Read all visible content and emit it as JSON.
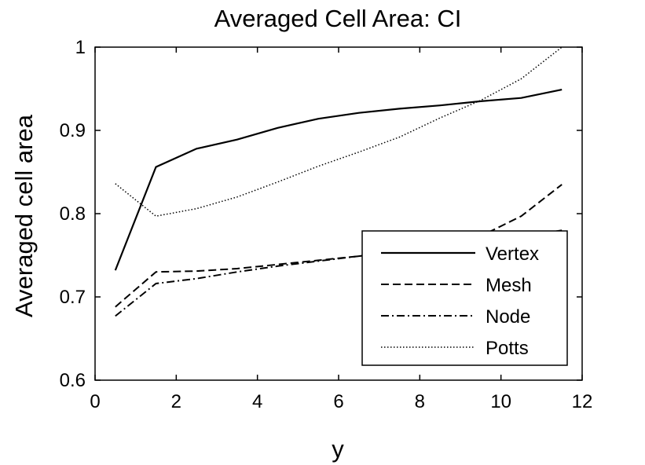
{
  "chart_data": {
    "type": "line",
    "title": "Averaged Cell Area: CI",
    "xlabel": "y",
    "ylabel": "Averaged cell area",
    "xlim": [
      0,
      12
    ],
    "ylim": [
      0.6,
      1.0
    ],
    "xticks": [
      0,
      2,
      4,
      6,
      8,
      10,
      12
    ],
    "xtick_labels": [
      "0",
      "2",
      "4",
      "6",
      "8",
      "10",
      "12"
    ],
    "yticks": [
      0.6,
      0.7,
      0.8,
      0.9,
      1.0
    ],
    "ytick_labels": [
      "0.6",
      "0.7",
      "0.8",
      "0.9",
      "1"
    ],
    "grid": false,
    "legend_position": "bottom-right",
    "series": [
      {
        "name": "Vertex",
        "style": "solid",
        "x": [
          0.5,
          1.5,
          2.5,
          3.5,
          4.5,
          5.5,
          6.5,
          7.5,
          8.5,
          9.5,
          10.5,
          11.5
        ],
        "y": [
          0.732,
          0.856,
          0.878,
          0.889,
          0.903,
          0.914,
          0.921,
          0.926,
          0.93,
          0.935,
          0.939,
          0.949
        ]
      },
      {
        "name": "Mesh",
        "style": "dashed",
        "x": [
          0.5,
          1.5,
          2.5,
          3.5,
          4.5,
          5.5,
          6.5,
          7.5,
          8.5,
          9.5,
          10.5,
          11.5
        ],
        "y": [
          0.688,
          0.73,
          0.731,
          0.734,
          0.739,
          0.744,
          0.749,
          0.755,
          0.762,
          0.773,
          0.797,
          0.835
        ]
      },
      {
        "name": "Node",
        "style": "dashdot",
        "x": [
          0.5,
          1.5,
          2.5,
          3.5,
          4.5,
          5.5,
          6.5,
          7.5,
          8.5,
          9.5,
          10.5,
          11.5
        ],
        "y": [
          0.677,
          0.716,
          0.722,
          0.73,
          0.737,
          0.743,
          0.749,
          0.754,
          0.759,
          0.765,
          0.772,
          0.78
        ]
      },
      {
        "name": "Potts",
        "style": "dotted",
        "x": [
          0.5,
          1.5,
          2.5,
          3.5,
          4.5,
          5.5,
          6.5,
          7.5,
          8.5,
          9.5,
          10.5,
          11.5
        ],
        "y": [
          0.836,
          0.797,
          0.806,
          0.82,
          0.838,
          0.857,
          0.874,
          0.892,
          0.915,
          0.936,
          0.962,
          1.0
        ]
      }
    ]
  }
}
